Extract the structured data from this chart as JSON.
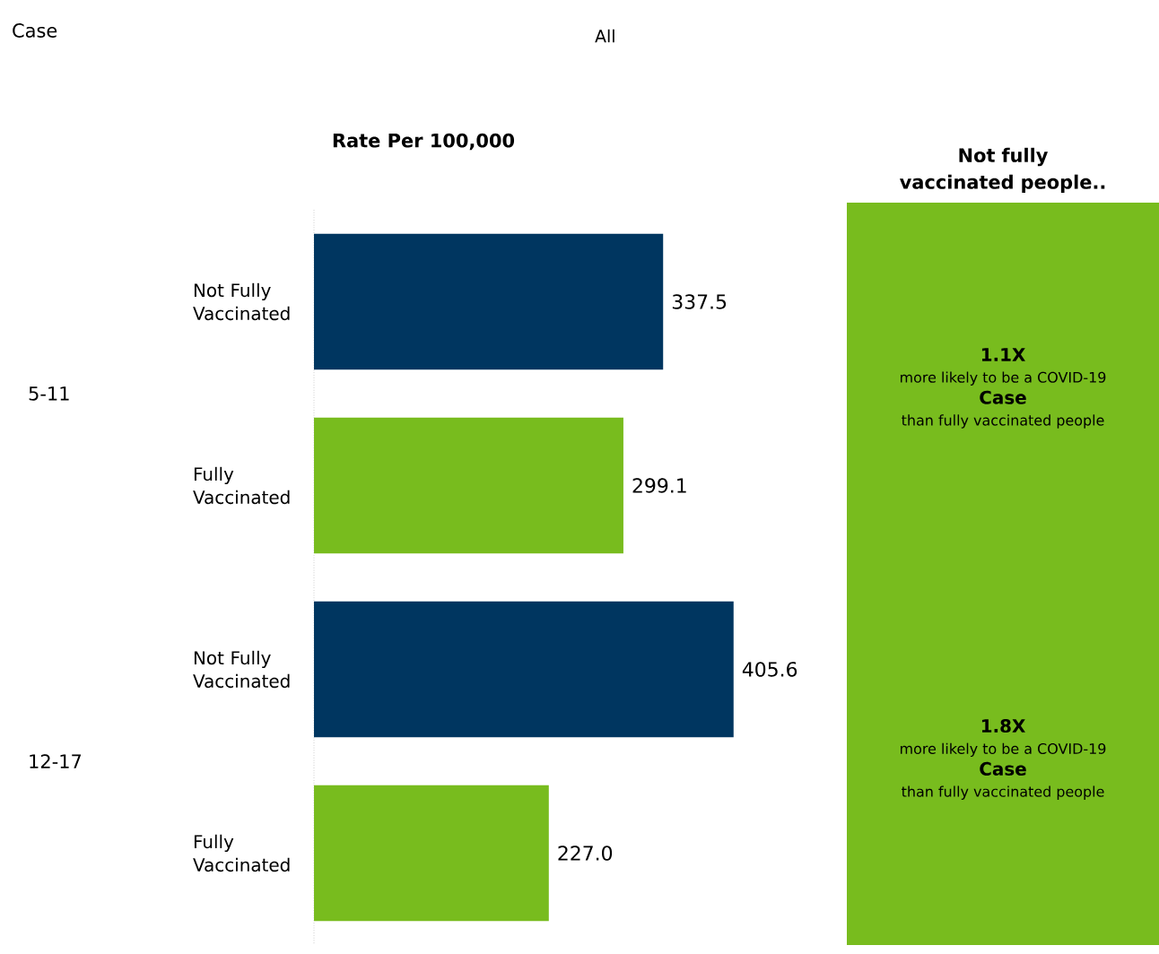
{
  "chart_data": [
    {
      "type": "bar",
      "orientation": "horizontal",
      "title": "Rate Per 100,000",
      "categories": [
        "5-11",
        "12-17"
      ],
      "series": [
        {
          "name": "Not Fully Vaccinated",
          "color": "#003660",
          "values": [
            337.5,
            405.6
          ],
          "value_labels": [
            "337.5",
            "405.6"
          ]
        },
        {
          "name": "Fully Vaccinated",
          "color": "#78bc1e",
          "values": [
            299.1,
            227.0
          ],
          "value_labels": [
            "299.1",
            "227.0"
          ]
        }
      ],
      "annotations": [
        "Case"
      ]
    },
    {
      "type": "other",
      "title": "Not fully vaccinated people..",
      "color": "#78bc1e",
      "annotations": [
        "All",
        "1.1X",
        "more likely to be a COVID-19",
        "Case",
        "than fully vaccinated people",
        "1.8X",
        "more likely to be a COVID-19",
        "Case",
        "than fully vaccinated people"
      ]
    }
  ]
}
